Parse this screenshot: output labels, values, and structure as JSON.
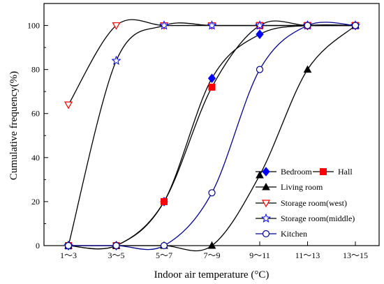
{
  "chart_data": {
    "type": "line",
    "xlabel": "Indoor air temperature (°C)",
    "ylabel": "Cumulative frequency(%)",
    "categories": [
      "1～3",
      "3～5",
      "5～7",
      "7～9",
      "9～11",
      "11～13",
      "13～15"
    ],
    "ylim": [
      0,
      110
    ],
    "yticks": [
      0,
      20,
      40,
      60,
      80,
      100
    ],
    "grid": false,
    "legend_position": "bottom-right",
    "series": [
      {
        "name": "Bedroom",
        "marker": "diamond-filled",
        "line_color": "#000000",
        "marker_color": "#0000ff",
        "values": [
          0,
          0,
          20,
          76,
          96,
          100,
          100
        ]
      },
      {
        "name": "Hall",
        "marker": "square-filled",
        "line_color": "#000000",
        "marker_color": "#ff0000",
        "values": [
          0,
          0,
          20,
          72,
          100,
          100,
          100
        ]
      },
      {
        "name": "Living room",
        "marker": "triangle-up-filled",
        "line_color": "#000000",
        "marker_color": "#000000",
        "values": [
          0,
          0,
          0,
          0,
          32,
          80,
          100
        ]
      },
      {
        "name": "Storage room(west)",
        "marker": "triangle-down-open",
        "line_color": "#000000",
        "marker_color": "#ff0000",
        "values": [
          64,
          100,
          100,
          100,
          100,
          100,
          100
        ]
      },
      {
        "name": "Storage room(middle)",
        "marker": "star-open",
        "line_color": "#000000",
        "marker_color": "#0000ff",
        "values": [
          0,
          84,
          100,
          100,
          100,
          100,
          100
        ]
      },
      {
        "name": "Kitchen",
        "marker": "circle-open",
        "line_color": "#00008b",
        "marker_color": "#00008b",
        "values": [
          0,
          0,
          0,
          24,
          80,
          100,
          100
        ]
      }
    ]
  }
}
